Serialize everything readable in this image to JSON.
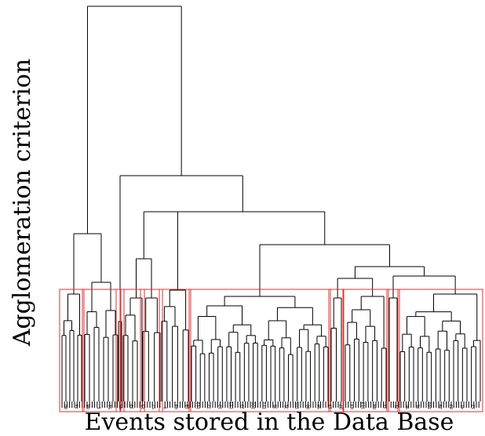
{
  "chart_data": {
    "type": "dendrogram",
    "title": "",
    "xlabel": "Events stored in the Data Base",
    "ylabel": "Agglomeration criterion",
    "line_color": "#000000",
    "cluster_box_color": "#e03030",
    "cluster_count": 11,
    "leaves_visible": [
      "80",
      "74",
      "86",
      "1",
      "52",
      "95",
      "33",
      "15",
      "57",
      "9",
      "64",
      "18",
      "112",
      "77",
      "12",
      "133",
      "22",
      "106",
      "111",
      "35",
      "31",
      "105",
      "80",
      "56",
      "13",
      "87",
      "63",
      "113",
      "84",
      "24",
      "71",
      "96",
      "75",
      "101",
      "29",
      "83",
      "41",
      "12"
    ]
  }
}
